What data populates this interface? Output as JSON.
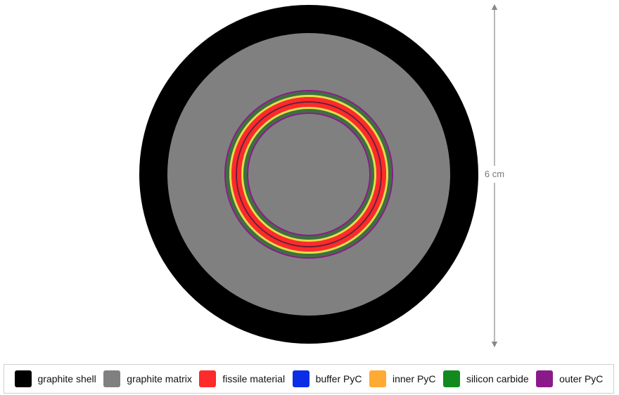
{
  "diagram": {
    "dimension_label": "6 cm"
  },
  "legend": {
    "items": [
      {
        "key": "graphite-shell",
        "label": "graphite shell",
        "color": "#000000"
      },
      {
        "key": "graphite-matrix",
        "label": "graphite matrix",
        "color": "#808080"
      },
      {
        "key": "fissile-material",
        "label": "fissile material",
        "color": "#ff2a2a"
      },
      {
        "key": "buffer-pyc",
        "label": "buffer PyC",
        "color": "#0a2ee6"
      },
      {
        "key": "inner-pyc",
        "label": "inner PyC",
        "color": "#ffaa33"
      },
      {
        "key": "silicon-carbide",
        "label": "silicon carbide",
        "color": "#138a1e"
      },
      {
        "key": "outer-pyc",
        "label": "outer PyC",
        "color": "#8a1a8a"
      }
    ]
  },
  "colors": {
    "dimension_line": "#888888",
    "ring_yellow": "#e2df4a",
    "ring_green": "#3f6f3f"
  }
}
